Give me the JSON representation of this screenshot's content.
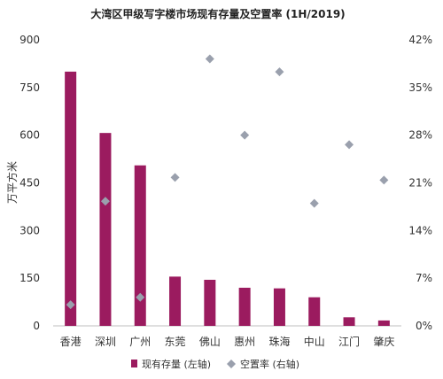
{
  "chart_data": {
    "type": "bar",
    "title": "大湾区甲级写字楼市场现有存量及空置率 (1H/2019)",
    "ylabel": "万平方米",
    "categories": [
      "香港",
      "深圳",
      "广州",
      "东莞",
      "佛山",
      "惠州",
      "珠海",
      "中山",
      "江门",
      "肇庆"
    ],
    "series": [
      {
        "name": "现有存量 (左轴)",
        "type": "bar",
        "axis": "left",
        "color": "#9b1b5f",
        "values": [
          800,
          607,
          505,
          155,
          145,
          120,
          118,
          90,
          27,
          17
        ]
      },
      {
        "name": "空置率 (右轴)",
        "type": "scatter",
        "axis": "right",
        "color": "#9aa0ad",
        "marker": "diamond",
        "values": [
          3.1,
          18.3,
          4.2,
          21.8,
          39.2,
          28.0,
          37.3,
          18.0,
          26.6,
          21.4
        ]
      }
    ],
    "y_left": {
      "min": 0,
      "max": 900,
      "ticks": [
        0,
        150,
        300,
        450,
        600,
        750,
        900
      ]
    },
    "y_right": {
      "min": 0,
      "max": 42,
      "ticks": [
        "0%",
        "7%",
        "14%",
        "21%",
        "28%",
        "35%",
        "42%"
      ]
    },
    "grid": false,
    "legend_position": "bottom"
  }
}
